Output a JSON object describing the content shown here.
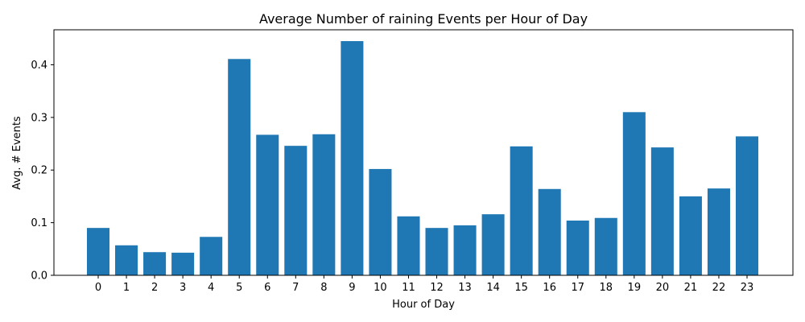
{
  "chart_data": {
    "type": "bar",
    "title": "Average Number of raining Events per Hour of Day",
    "xlabel": "Hour of Day",
    "ylabel": "Avg. # Events",
    "categories": [
      "0",
      "1",
      "2",
      "3",
      "4",
      "5",
      "6",
      "7",
      "8",
      "9",
      "10",
      "11",
      "12",
      "13",
      "14",
      "15",
      "16",
      "17",
      "18",
      "19",
      "20",
      "21",
      "22",
      "23"
    ],
    "values": [
      0.09,
      0.057,
      0.044,
      0.043,
      0.073,
      0.411,
      0.267,
      0.246,
      0.268,
      0.445,
      0.202,
      0.112,
      0.09,
      0.095,
      0.116,
      0.245,
      0.164,
      0.104,
      0.109,
      0.31,
      0.243,
      0.15,
      0.165,
      0.264
    ],
    "ylim": [
      0,
      0.4665
    ],
    "yticks": [
      0.0,
      0.1,
      0.2,
      0.3,
      0.4
    ],
    "ytick_labels": [
      "0.0",
      "0.1",
      "0.2",
      "0.3",
      "0.4"
    ],
    "bar_color": "#1f77b4",
    "grid": false,
    "legend": "none"
  }
}
